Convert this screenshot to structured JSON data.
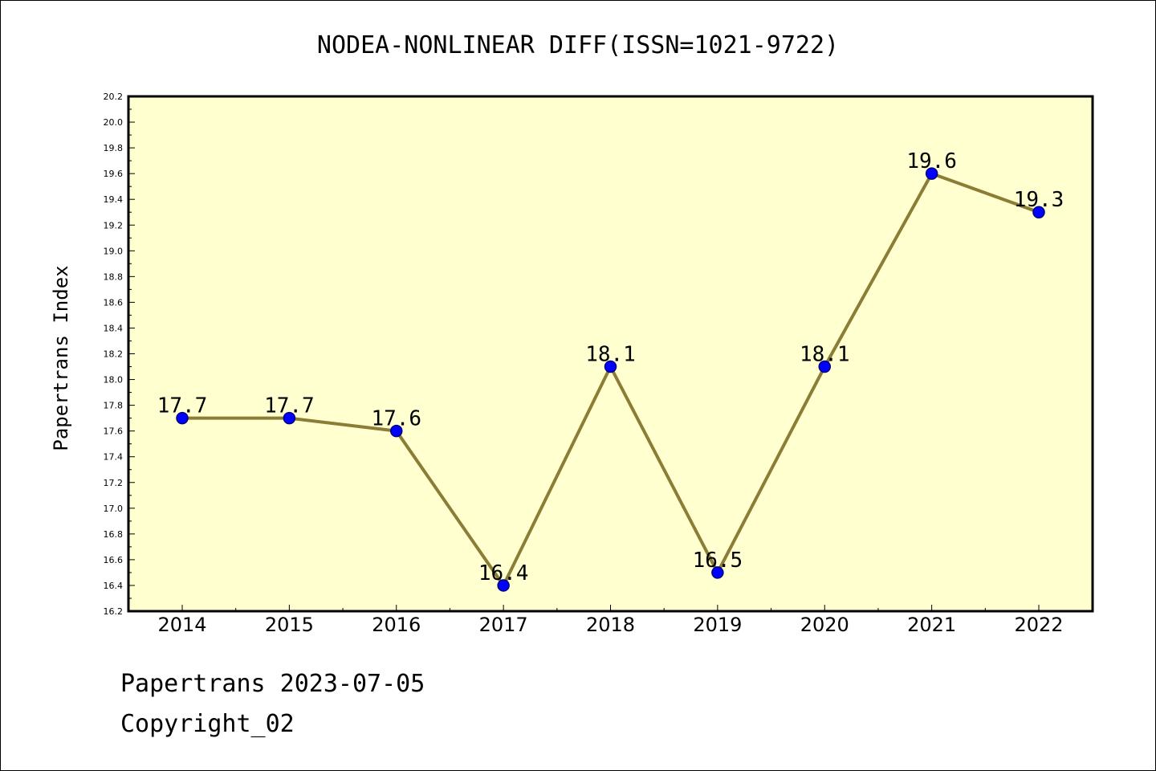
{
  "footer": {
    "line1": "Papertrans 2023-07-05",
    "line2": "Copyright_02"
  },
  "colors": {
    "plot_background": "#ffffd0",
    "line": "#8b7d35",
    "marker": "#0000ff",
    "marker_edge": "#000080"
  },
  "chart_data": {
    "type": "line",
    "title": "NODEA-NONLINEAR DIFF(ISSN=1021-9722)",
    "xlabel": "",
    "ylabel": "Papertrans Index",
    "categories": [
      "2014",
      "2015",
      "2016",
      "2017",
      "2018",
      "2019",
      "2020",
      "2021",
      "2022"
    ],
    "series": [
      {
        "values": [
          17.7,
          17.7,
          17.6,
          16.4,
          18.1,
          16.5,
          18.1,
          19.6,
          19.3
        ]
      }
    ],
    "data_labels": [
      "17.7",
      "17.7",
      "17.6",
      "16.4",
      "18.1",
      "16.5",
      "18.1",
      "19.6",
      "19.3"
    ],
    "ylim": [
      16.2,
      20.2
    ],
    "yticks": [
      "16.2",
      "16.4",
      "16.6",
      "16.8",
      "17.0",
      "17.2",
      "17.4",
      "17.6",
      "17.8",
      "18.0",
      "18.2",
      "18.4",
      "18.6",
      "18.8",
      "19.0",
      "19.2",
      "19.4",
      "19.6",
      "19.8",
      "20.0",
      "20.2"
    ],
    "grid": false,
    "legend": "none"
  }
}
